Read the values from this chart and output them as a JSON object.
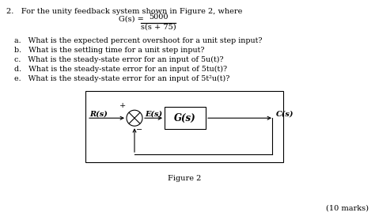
{
  "bg_color": "#ffffff",
  "title_text": "2.   For the unity feedback system shown in Figure 2, where",
  "transfer_fn_label": "G(s) =",
  "numerator": "5000",
  "denominator": "s(s + 75)",
  "questions": [
    "a.   What is the expected percent overshoot for a unit step input?",
    "b.   What is the settling time for a unit step input?",
    "c.   What is the steady-state error for an input of 5u(t)?",
    "d.   What is the steady-state error for an input of 5tu(t)?",
    "e.   What is the steady-state error for an input of 5t²u(t)?"
  ],
  "figure_label": "Figure 2",
  "marks_label": "(10 marks)",
  "R_label": "R(s)",
  "E_label": "E(s)",
  "G_label": "G(s)",
  "C_label": "C(s)",
  "plus_sign": "+",
  "minus_sign": "−",
  "font_size_main": 7.0,
  "font_size_small": 6.8
}
